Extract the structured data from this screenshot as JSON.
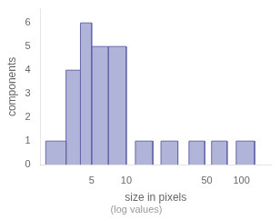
{
  "chart_data": {
    "type": "histogram",
    "xlabel": "size in pixels",
    "annotation": "(log values)",
    "ylabel": "components",
    "color": "#b0b4d8",
    "left": [
      2,
      3,
      4,
      5,
      7,
      12,
      20,
      35,
      55,
      90
    ],
    "right": [
      3,
      4,
      5,
      7,
      10,
      17,
      28,
      48,
      75,
      130
    ],
    "values": [
      1,
      4,
      6,
      5,
      5,
      1,
      1,
      1,
      1,
      1
    ],
    "log": "x",
    "xlim": [
      1.8,
      180
    ],
    "xticks": [
      5,
      10,
      50,
      100
    ],
    "ylim": [
      0,
      6.6
    ],
    "yticks": [
      0,
      1,
      2,
      3,
      4,
      5,
      6
    ],
    "grid": false
  }
}
